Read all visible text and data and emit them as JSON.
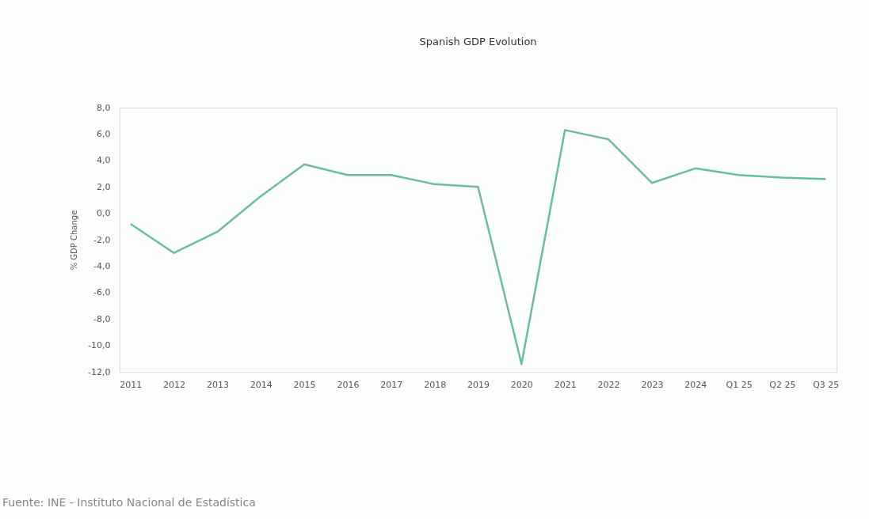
{
  "chart_data": {
    "type": "line",
    "title": "Spanish GDP Evolution",
    "ylabel": "% GDP Change",
    "categories": [
      "2011",
      "2012",
      "2013",
      "2014",
      "2015",
      "2016",
      "2017",
      "2018",
      "2019",
      "2020",
      "2021",
      "2022",
      "2023",
      "2024",
      "Q1 25",
      "Q2 25",
      "Q3 25"
    ],
    "series": [
      {
        "color": "#6dbba5",
        "values": [
          -0.8,
          -3.0,
          -1.4,
          1.3,
          3.7,
          2.9,
          2.9,
          2.2,
          2.0,
          -11.4,
          6.3,
          5.6,
          2.3,
          3.4,
          2.9,
          2.7,
          2.6
        ]
      }
    ],
    "ylim": [
      -12,
      8
    ],
    "yticks": [
      {
        "value": -12,
        "label": "-12,0"
      },
      {
        "value": -10,
        "label": "-10,0"
      },
      {
        "value": -8,
        "label": "-8,0"
      },
      {
        "value": -6,
        "label": "-6,0"
      },
      {
        "value": -4,
        "label": "-4,0"
      },
      {
        "value": -2,
        "label": "-2,0"
      },
      {
        "value": 0,
        "label": "0,0"
      },
      {
        "value": 2,
        "label": "2,0"
      },
      {
        "value": 4,
        "label": "4,0"
      },
      {
        "value": 6,
        "label": "6,0"
      },
      {
        "value": 8,
        "label": "8,0"
      }
    ],
    "grid": false,
    "marker": "none",
    "line_style": "solid",
    "annotations": [
      "Fuente: INE - Instituto Nacional de Estadística"
    ]
  }
}
